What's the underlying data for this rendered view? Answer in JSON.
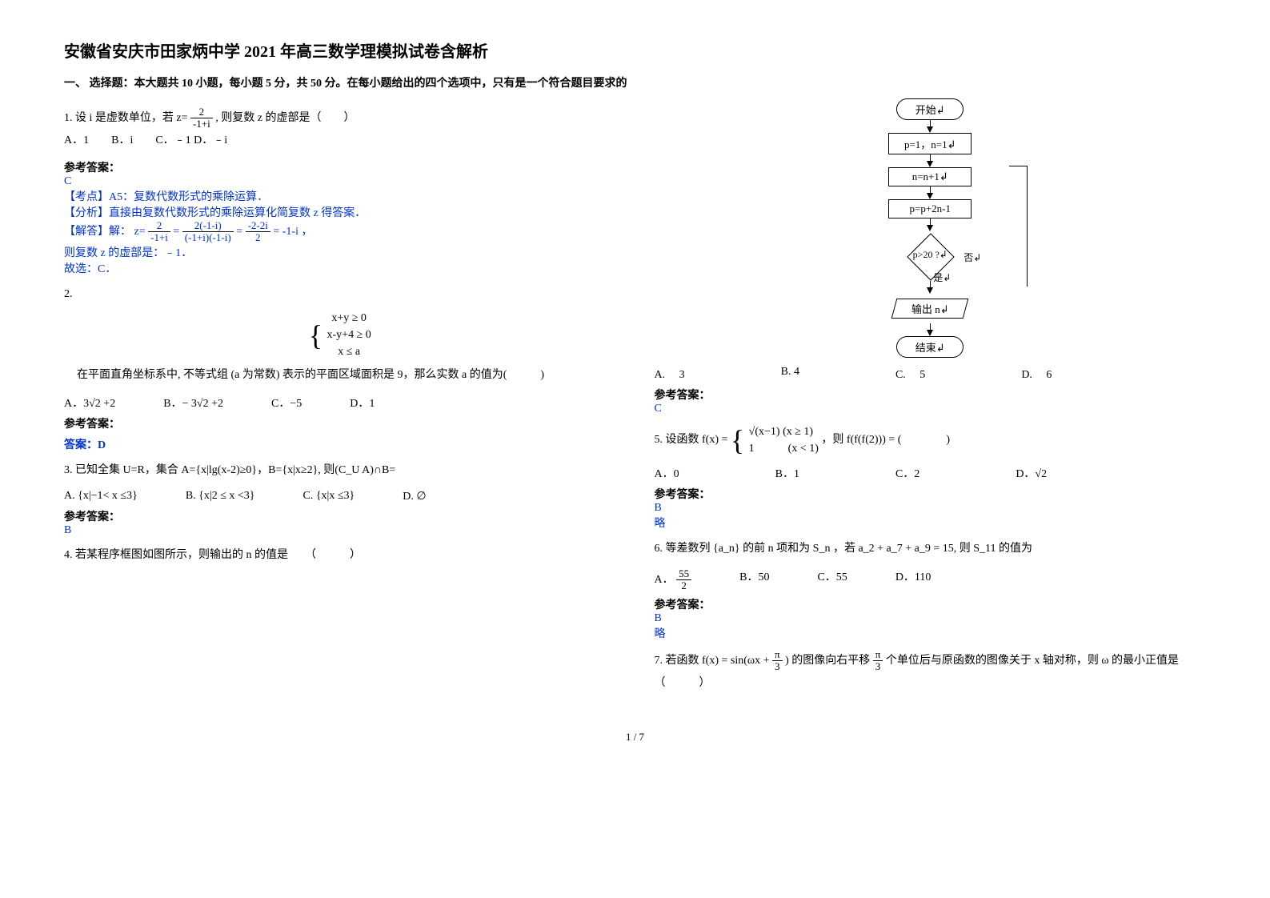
{
  "title": "安徽省安庆市田家炳中学 2021 年高三数学理模拟试卷含解析",
  "section1": "一、 选择题：本大题共 10 小题，每小题 5 分，共 50 分。在每小题给出的四个选项中，只有是一个符合题目要求的",
  "q1": {
    "stem_a": "1. 设 i 是虚数单位，若 ",
    "frac_num": "2",
    "frac_den": "-1+i",
    "z_eq": "z=",
    "stem_b": " , 则复数 z 的虚部是（　　）",
    "opts": "A．1　　B．i　　C．﹣1 D．﹣i",
    "ans_label": "参考答案：",
    "ans": "C",
    "p1": "【考点】A5：复数代数形式的乘除运算．",
    "p2": "【分析】直接由复数代数形式的乘除运算化简复数 z 得答案．",
    "p3a": "【解答】解：",
    "eq_lhs": "z=",
    "f1n": "2",
    "f1d": "-1+i",
    "eq_mid1": " = ",
    "f2n": "2(-1-i)",
    "f2d": "(-1+i)(-1-i)",
    "eq_mid2": " = ",
    "f3n": "-2-2i",
    "f3d": "2",
    "eq_end": " = -1-i ，",
    "p4": "则复数 z 的虚部是：﹣1．",
    "p5": "故选：C．"
  },
  "q2": {
    "num": "2.",
    "stem_a": "在平面直角坐标系中, 不等式组 ",
    "c1": "x+y ≥ 0",
    "c2": "x-y+4 ≥ 0",
    "c3": "x ≤ a",
    "stem_b": "(a 为常数) 表示的平面区域面积是 9，那么实数 a 的值为(　　　)",
    "oA": "A．3√2 +2",
    "oB": "B．− 3√2 +2",
    "oC": "C．−5",
    "oD": "D．1",
    "ans_label": "参考答案：",
    "ans": "答案：D"
  },
  "q3": {
    "stem": "3. 已知全集 U=R，集合 A={x|lg(x-2)≥0}，B={x|x≥2}, 则(C_U A)∩B=",
    "oA": "A. {x|−1< x ≤3}",
    "oB": "B. {x|2 ≤ x <3}",
    "oC": "C. {x|x ≤3}",
    "oD": "D. ∅",
    "ans_label": "参考答案：",
    "ans": "B"
  },
  "q4": {
    "stem": "4. 若某程序框图如图所示，则输出的 n 的值是　　（　　　）"
  },
  "flow": {
    "start": "开始↲",
    "s1": "p=1，n=1↲",
    "s2": "n=n+1↲",
    "s3": "p=p+2n-1",
    "cond": "p>20 ?↲",
    "no": "否↲",
    "yes": "是↲",
    "out": "输出 n↲",
    "end": "结束↲"
  },
  "q4opts": {
    "A": "A.　 3",
    "B": "B. 4",
    "C": "C.　 5",
    "D": "D.　 6"
  },
  "q4ans_label": "参考答案：",
  "q4ans": "C",
  "q5": {
    "stem_a": "5. 设函数 ",
    "fx": "f(x) = ",
    "c1": "√(x−1) (x ≥ 1)",
    "c2": "1　　　(x < 1)",
    "stem_b": "，则 f(f(f(2))) = (　　　　)",
    "oA": "A．0",
    "oB": "B．1",
    "oC": "C．2",
    "oD": "D．√2",
    "ans_label": "参考答案：",
    "ans": "B",
    "note": "略"
  },
  "q6": {
    "stem": "6. 等差数列 {a_n} 的前 n 项和为 S_n ，若 a_2 + a_7 + a_9 = 15, 则 S_11 的值为",
    "oA_num": "55",
    "oA_den": "2",
    "oA": "A．",
    "oB": "B．50",
    "oC": "C．55",
    "oD": "D．110",
    "ans_label": "参考答案：",
    "ans": "B",
    "note": "略"
  },
  "q7": {
    "stem_a": "7. 若函数 ",
    "fx": "f(x) = sin(ωx + ",
    "pi": "π",
    "three": "3",
    "stem_b": ") 的图像向右平移 ",
    "stem_c": " 个单位后与原函数的图像关于 x 轴对称，则 ω 的最小正值是（　　　）"
  },
  "footer": "1 / 7"
}
